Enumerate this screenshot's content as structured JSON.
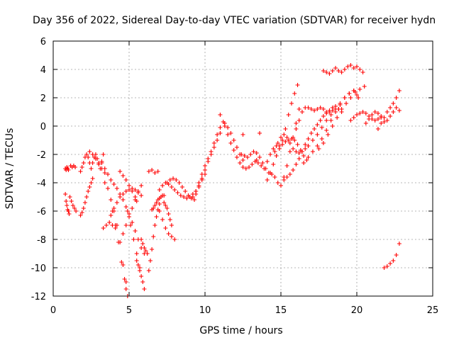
{
  "chart_data": {
    "type": "scatter",
    "title": "Day 356 of 2022, Sidereal Day-to-day VTEC variation (SDTVAR) for receiver hydn",
    "xlabel": "GPS time / hours",
    "ylabel": "SDTVAR / TECUs",
    "xlim": [
      0,
      25
    ],
    "ylim": [
      -12,
      6
    ],
    "xticks": [
      0,
      5,
      10,
      15,
      20,
      25
    ],
    "yticks": [
      -12,
      -10,
      -8,
      -6,
      -4,
      -2,
      0,
      2,
      4,
      6
    ],
    "xtick_labels": [
      "0",
      "5",
      "10",
      "15",
      "20",
      "25"
    ],
    "ytick_labels": [
      "-12",
      "-10",
      "-8",
      "-6",
      "-4",
      "-2",
      "0",
      "2",
      "4",
      "6"
    ],
    "grid": true,
    "marker": "plus",
    "color": "#ff0000",
    "series": [
      {
        "name": "s1",
        "x": [
          0.8,
          0.85,
          0.9,
          0.95,
          1.0
        ],
        "y": [
          -3.0,
          -3.1,
          -2.9,
          -3.0,
          -3.1
        ]
      },
      {
        "name": "s2",
        "x": [
          0.8,
          0.85,
          0.9,
          0.95,
          1.0,
          1.05
        ],
        "y": [
          -4.8,
          -5.3,
          -5.6,
          -5.9,
          -6.0,
          -6.2
        ]
      },
      {
        "name": "s3",
        "x": [
          1.1,
          1.2,
          1.3,
          1.4,
          1.5
        ],
        "y": [
          -5.0,
          -5.3,
          -5.6,
          -5.8,
          -6.0
        ]
      },
      {
        "name": "s4",
        "x": [
          1.15,
          1.25,
          1.35,
          1.45
        ],
        "y": [
          -2.8,
          -2.9,
          -2.8,
          -2.9
        ]
      },
      {
        "name": "s5",
        "x": [
          1.8,
          1.9,
          2.0,
          2.1,
          2.2,
          2.3,
          2.4,
          2.5,
          2.6,
          2.7,
          2.8,
          2.9,
          3.0,
          3.1,
          3.2,
          3.3
        ],
        "y": [
          -3.2,
          -2.9,
          -2.6,
          -2.2,
          -2.0,
          -2.2,
          -2.6,
          -3.0,
          -2.6,
          -2.2,
          -2.0,
          -2.3,
          -2.7,
          -3.0,
          -2.5,
          -2.0
        ]
      },
      {
        "name": "s6",
        "x": [
          1.8,
          1.9,
          2.0,
          2.1,
          2.2,
          2.3,
          2.4,
          2.5,
          2.6
        ],
        "y": [
          -6.3,
          -6.1,
          -5.8,
          -5.4,
          -5.0,
          -4.6,
          -4.3,
          -4.0,
          -3.7
        ]
      },
      {
        "name": "s7",
        "x": [
          2.4,
          2.6,
          2.8,
          3.0,
          3.2,
          3.4
        ],
        "y": [
          -1.8,
          -2.0,
          -2.3,
          -2.6,
          -3.0,
          -3.3
        ]
      },
      {
        "name": "s8",
        "x": [
          3.2,
          3.4,
          3.6,
          3.8,
          4.0,
          4.2,
          4.4,
          4.6,
          4.8,
          5.0,
          5.2,
          5.4,
          5.6,
          5.8,
          6.0
        ],
        "y": [
          -2.6,
          -3.0,
          -3.4,
          -3.8,
          -4.1,
          -4.4,
          -4.8,
          -5.2,
          -5.7,
          -6.2,
          -6.8,
          -7.4,
          -8.0,
          -8.6,
          -9.0
        ]
      },
      {
        "name": "s9",
        "x": [
          3.4,
          3.6,
          3.8,
          4.0,
          4.2,
          4.4,
          4.6,
          4.8
        ],
        "y": [
          -4.0,
          -4.4,
          -5.2,
          -6.0,
          -7.0,
          -8.2,
          -9.8,
          -11.0
        ]
      },
      {
        "name": "s10",
        "x": [
          3.3,
          3.5,
          3.7,
          3.9,
          4.1
        ],
        "y": [
          -7.2,
          -7.0,
          -6.8,
          -7.0,
          -7.2
        ]
      },
      {
        "name": "s11",
        "x": [
          3.9,
          4.1,
          4.3,
          4.5,
          4.7,
          4.8,
          4.9
        ],
        "y": [
          -6.0,
          -7.0,
          -8.2,
          -9.6,
          -10.8,
          -11.5,
          -12.0
        ]
      },
      {
        "name": "s12",
        "x": [
          3.8,
          4.0,
          4.2,
          4.4,
          4.6,
          4.8,
          5.0,
          5.2,
          5.4,
          5.6,
          5.8
        ],
        "y": [
          -6.3,
          -5.8,
          -5.4,
          -5.0,
          -4.8,
          -4.6,
          -4.5,
          -4.4,
          -4.5,
          -4.7,
          -4.9
        ]
      },
      {
        "name": "s13",
        "x": [
          4.6,
          4.8,
          5.0,
          5.2,
          5.4,
          5.6,
          5.8
        ],
        "y": [
          -7.6,
          -7.0,
          -6.4,
          -5.8,
          -5.2,
          -4.6,
          -4.2
        ]
      },
      {
        "name": "s14",
        "x": [
          4.4,
          4.6,
          4.8,
          5.0,
          5.2,
          5.4,
          5.5
        ],
        "y": [
          -3.2,
          -3.5,
          -3.8,
          -4.2,
          -4.6,
          -5.0,
          -5.3
        ]
      },
      {
        "name": "s15",
        "x": [
          4.9,
          5.1,
          5.3,
          5.5,
          5.7
        ],
        "y": [
          -6.0,
          -7.0,
          -8.0,
          -9.0,
          -10.0
        ]
      },
      {
        "name": "s16",
        "x": [
          5.5,
          5.6,
          5.7,
          5.8,
          5.9,
          6.0
        ],
        "y": [
          -9.5,
          -9.8,
          -10.2,
          -10.6,
          -11.0,
          -11.5
        ]
      },
      {
        "name": "s17",
        "x": [
          5.8,
          5.9,
          6.0,
          6.1,
          6.2
        ],
        "y": [
          -8.0,
          -8.3,
          -8.6,
          -8.8,
          -9.0
        ]
      },
      {
        "name": "s18",
        "x": [
          6.3,
          6.4,
          6.5,
          6.6,
          6.7,
          6.8,
          6.9,
          7.0
        ],
        "y": [
          -10.2,
          -9.5,
          -8.7,
          -7.8,
          -7.0,
          -6.4,
          -5.9,
          -5.5
        ]
      },
      {
        "name": "s19",
        "x": [
          6.5,
          6.6,
          6.7,
          6.8,
          6.9,
          7.0,
          7.1,
          7.2,
          7.3
        ],
        "y": [
          -5.9,
          -5.8,
          -5.6,
          -5.4,
          -5.2,
          -5.1,
          -5.0,
          -4.9,
          -4.9
        ]
      },
      {
        "name": "s20",
        "x": [
          6.3,
          6.5,
          6.7,
          6.9
        ],
        "y": [
          -3.2,
          -3.1,
          -3.3,
          -3.2
        ]
      },
      {
        "name": "s21",
        "x": [
          7.0,
          7.2,
          7.4,
          7.6,
          7.8,
          8.0
        ],
        "y": [
          -6.0,
          -6.6,
          -7.2,
          -7.6,
          -7.8,
          -8.0
        ]
      },
      {
        "name": "s22",
        "x": [
          7.3,
          7.4,
          7.5,
          7.6,
          7.7,
          7.8
        ],
        "y": [
          -5.4,
          -5.6,
          -5.8,
          -6.2,
          -6.6,
          -7.0
        ]
      },
      {
        "name": "s23",
        "x": [
          7.0,
          7.2,
          7.4,
          7.6,
          7.8,
          8.0,
          8.2,
          8.4,
          8.6,
          8.8,
          9.0,
          9.2,
          9.4,
          9.6,
          9.8,
          10.0
        ],
        "y": [
          -4.5,
          -4.2,
          -4.0,
          -4.1,
          -4.3,
          -4.5,
          -4.7,
          -4.9,
          -5.0,
          -5.1,
          -5.0,
          -4.8,
          -4.6,
          -4.2,
          -3.8,
          -3.4
        ]
      },
      {
        "name": "s24",
        "x": [
          7.5,
          7.7,
          7.9,
          8.1,
          8.3,
          8.5,
          8.7,
          8.9,
          9.1,
          9.3
        ],
        "y": [
          -4.0,
          -3.8,
          -3.7,
          -3.8,
          -4.0,
          -4.3,
          -4.6,
          -4.9,
          -5.1,
          -5.2
        ]
      },
      {
        "name": "s25",
        "x": [
          9.2,
          9.4,
          9.6,
          9.8,
          10.0,
          10.2,
          10.4,
          10.6,
          10.8,
          11.0,
          11.2
        ],
        "y": [
          -5.0,
          -4.6,
          -4.0,
          -3.4,
          -2.8,
          -2.3,
          -1.8,
          -1.2,
          -0.6,
          -0.1,
          0.3
        ]
      },
      {
        "name": "s26",
        "x": [
          9.4,
          9.6,
          9.8,
          10.0,
          10.2,
          10.4,
          10.6,
          10.8,
          11.0
        ],
        "y": [
          -4.8,
          -4.3,
          -3.7,
          -3.1,
          -2.5,
          -2.0,
          -1.5,
          -1.0,
          -0.5
        ]
      },
      {
        "name": "s27",
        "x": [
          11.0
        ],
        "y": [
          0.8
        ]
      },
      {
        "name": "s28",
        "x": [
          11.3,
          11.5,
          11.7,
          11.9,
          12.1,
          12.3,
          12.5,
          12.7,
          12.9,
          13.1,
          13.3,
          13.5,
          13.7,
          13.9
        ],
        "y": [
          0.0,
          -0.6,
          -1.2,
          -1.7,
          -2.2,
          -2.6,
          -2.9,
          -3.0,
          -2.9,
          -2.7,
          -2.5,
          -2.6,
          -2.8,
          -3.0
        ]
      },
      {
        "name": "s29",
        "x": [
          11.3,
          11.5,
          11.7,
          11.9,
          12.1,
          12.3,
          12.5
        ],
        "y": [
          0.2,
          -0.1,
          -0.5,
          -1.0,
          -1.5,
          -2.0,
          -2.4
        ]
      },
      {
        "name": "s30",
        "x": [
          12.4,
          12.6,
          12.8,
          13.0,
          13.2,
          13.4
        ],
        "y": [
          -2.0,
          -2.1,
          -2.2,
          -2.0,
          -1.8,
          -1.9
        ]
      },
      {
        "name": "s31",
        "x": [
          12.5
        ],
        "y": [
          -0.6
        ]
      },
      {
        "name": "s32",
        "x": [
          13.6
        ],
        "y": [
          -0.5
        ]
      },
      {
        "name": "s33",
        "x": [
          13.4,
          13.6,
          13.8,
          14.0,
          14.2,
          14.4,
          14.6,
          14.8,
          15.0,
          15.2,
          15.4,
          15.6,
          15.8,
          16.0,
          16.2
        ],
        "y": [
          -2.4,
          -2.2,
          -2.6,
          -3.0,
          -3.3,
          -3.4,
          -3.6,
          -4.0,
          -4.2,
          -3.6,
          -2.8,
          -1.8,
          -0.8,
          0.2,
          1.2
        ]
      },
      {
        "name": "s34",
        "x": [
          13.9,
          14.1,
          14.3,
          14.5,
          14.7,
          14.9,
          15.1,
          15.3,
          15.5,
          15.7,
          15.9,
          16.1
        ],
        "y": [
          -3.0,
          -2.5,
          -2.0,
          -1.6,
          -1.4,
          -1.4,
          -1.0,
          -0.2,
          0.8,
          1.6,
          2.3,
          2.9
        ]
      },
      {
        "name": "s35",
        "x": [
          14.1,
          14.3,
          14.5,
          14.7,
          14.9,
          15.1,
          15.3,
          15.5,
          15.7,
          15.9,
          16.1,
          16.3,
          16.5,
          16.7
        ],
        "y": [
          -3.8,
          -3.3,
          -2.7,
          -2.1,
          -1.6,
          -1.3,
          -1.1,
          -1.0,
          -0.9,
          -1.0,
          -1.3,
          -1.7,
          -2.1,
          -2.4
        ]
      },
      {
        "name": "s36",
        "x": [
          14.6,
          14.8,
          15.0,
          15.2,
          15.4,
          15.6,
          15.8,
          16.0,
          16.2,
          16.4,
          16.6,
          16.8
        ],
        "y": [
          -1.8,
          -1.2,
          -0.8,
          -0.6,
          -0.8,
          -1.2,
          -1.6,
          -1.8,
          -1.9,
          -1.8,
          -1.6,
          -1.4
        ]
      },
      {
        "name": "s37",
        "x": [
          15.2,
          15.4,
          15.6,
          15.8,
          16.0,
          16.2,
          16.4,
          16.6,
          16.8,
          17.0,
          17.2,
          17.4,
          17.6,
          17.8,
          18.0,
          18.2,
          18.4,
          18.6,
          18.8
        ],
        "y": [
          -3.8,
          -3.6,
          -3.4,
          -3.1,
          -2.7,
          -2.3,
          -1.8,
          -1.3,
          -0.9,
          -0.5,
          -0.2,
          0.1,
          0.4,
          0.7,
          0.9,
          1.0,
          1.1,
          1.2,
          1.2
        ]
      },
      {
        "name": "s38",
        "x": [
          16.0,
          16.2,
          16.4,
          16.6,
          16.8,
          17.0,
          17.2,
          17.4,
          17.6,
          17.8,
          18.0,
          18.2,
          18.4,
          18.6,
          18.8,
          19.0
        ],
        "y": [
          -0.2,
          0.4,
          1.0,
          1.3,
          1.3,
          1.2,
          1.1,
          1.2,
          1.3,
          1.2,
          1.0,
          1.1,
          1.3,
          1.4,
          1.2,
          1.0
        ]
      },
      {
        "name": "s39",
        "x": [
          16.5,
          16.8,
          17.1,
          17.4,
          17.7,
          18.0,
          18.3,
          18.6,
          18.9,
          19.2,
          19.5,
          19.8,
          20.1
        ],
        "y": [
          -2.6,
          -2.2,
          -1.8,
          -1.4,
          -0.9,
          -0.3,
          0.4,
          1.0,
          1.5,
          2.0,
          2.3,
          2.5,
          2.0
        ]
      },
      {
        "name": "s40",
        "x": [
          16.8,
          17.1,
          17.4,
          17.7,
          18.0,
          18.3,
          18.6,
          18.9,
          19.2,
          19.5,
          19.8,
          20.0
        ],
        "y": [
          -1.4,
          -1.0,
          -0.6,
          -0.1,
          0.4,
          0.8,
          1.2,
          1.6,
          2.0,
          2.3,
          2.5,
          2.2
        ]
      },
      {
        "name": "s41",
        "x": [
          17.5,
          17.8,
          18.1,
          18.4,
          18.7,
          19.0,
          19.3,
          19.6,
          19.9,
          20.2,
          20.5
        ],
        "y": [
          -1.6,
          -1.2,
          -0.6,
          0.0,
          0.6,
          1.2,
          1.6,
          2.0,
          2.4,
          2.6,
          2.8
        ]
      },
      {
        "name": "s42",
        "x": [
          17.8,
          18.0,
          18.2,
          18.4,
          18.6,
          18.8,
          19.0,
          19.2,
          19.4,
          19.6,
          19.8,
          20.0,
          20.2,
          20.4
        ],
        "y": [
          3.9,
          3.8,
          3.7,
          3.9,
          4.1,
          3.9,
          3.8,
          4.0,
          4.2,
          4.3,
          4.1,
          4.2,
          4.0,
          3.8
        ]
      },
      {
        "name": "s43",
        "x": [
          19.6,
          19.8,
          20.0,
          20.2,
          20.4,
          20.6,
          20.8,
          21.0,
          21.2,
          21.4,
          21.6
        ],
        "y": [
          0.4,
          0.6,
          0.8,
          0.9,
          1.0,
          0.9,
          0.7,
          0.5,
          0.4,
          0.5,
          0.7
        ]
      },
      {
        "name": "s44",
        "x": [
          20.6,
          20.8,
          21.0,
          21.2,
          21.4,
          21.6,
          21.8,
          22.0,
          22.2,
          22.4,
          22.6,
          22.8
        ],
        "y": [
          0.2,
          0.5,
          0.8,
          1.0,
          0.9,
          0.6,
          0.3,
          0.4,
          0.7,
          1.0,
          1.3,
          1.1
        ]
      },
      {
        "name": "s45",
        "x": [
          21.4,
          21.6,
          21.8,
          22.0,
          22.2,
          22.4,
          22.6,
          22.8
        ],
        "y": [
          -0.2,
          0.2,
          0.6,
          1.0,
          1.3,
          1.6,
          2.0,
          2.5
        ]
      },
      {
        "name": "s46",
        "x": [
          21.8,
          22.0,
          22.2,
          22.4,
          22.6,
          22.8
        ],
        "y": [
          -10.0,
          -9.9,
          -9.7,
          -9.5,
          -9.1,
          -8.3
        ]
      }
    ]
  }
}
